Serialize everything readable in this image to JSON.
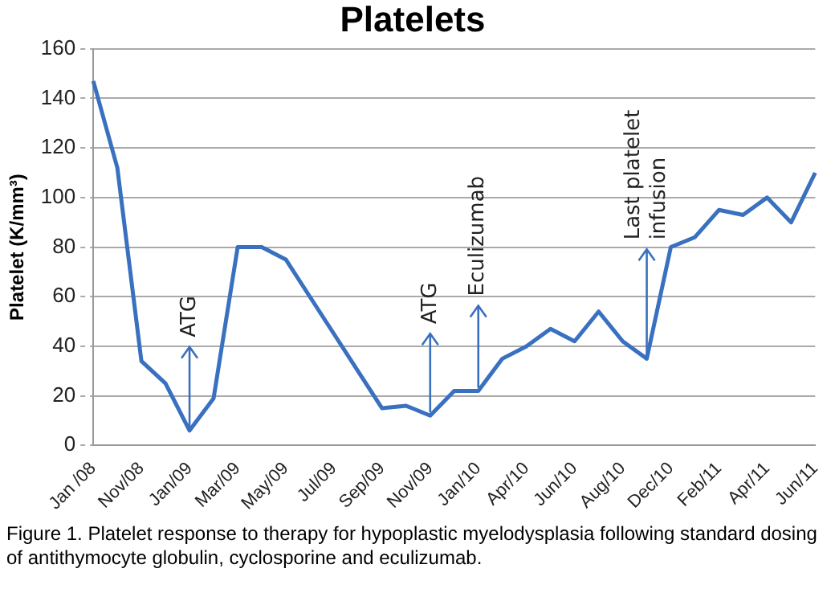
{
  "chart_data": {
    "type": "line",
    "title": "Platelets",
    "ylabel": "Platelet (K/mm³)",
    "categories": [
      "Jan /08",
      null,
      "Nov/08",
      null,
      "Jan/09",
      null,
      "Mar/09",
      null,
      "May/09",
      null,
      "Jul/09",
      null,
      "Sep/09",
      null,
      "Nov/09",
      null,
      "Jan/10",
      null,
      "Apr/10",
      null,
      "Jun/10",
      null,
      "Aug/10",
      null,
      "Dec/10",
      null,
      "Feb/11",
      null,
      "Apr/11",
      null,
      "Jun/11"
    ],
    "series": [
      {
        "color": "#3a70c0",
        "values": [
          147,
          112,
          34,
          25,
          6,
          19,
          80,
          80,
          75,
          60,
          45,
          30,
          15,
          16,
          12,
          22,
          22,
          35,
          40,
          47,
          42,
          54,
          42,
          35,
          80,
          84,
          95,
          93,
          100,
          90,
          110
        ]
      }
    ],
    "ylim": [
      0,
      160
    ],
    "yticks": [
      0,
      20,
      40,
      60,
      80,
      100,
      120,
      140,
      160
    ],
    "grid": "y",
    "marker": "none",
    "line_style": "solid",
    "annotations": [
      {
        "text": "ATG",
        "x": "Jan/09",
        "y": 6
      },
      {
        "text": "ATG",
        "x": "Nov/09",
        "y": 12
      },
      {
        "text": "Eculizumab",
        "x": "Jan/10",
        "y": 22
      },
      {
        "text": "Last platelet\ninfusion",
        "y": 35
      },
      "Figure 1. Platelet response to therapy for hypoplastic myelodysplasia following  standard dosing of antithymocyte globulin, cyclosporine and eculizumab."
    ]
  }
}
